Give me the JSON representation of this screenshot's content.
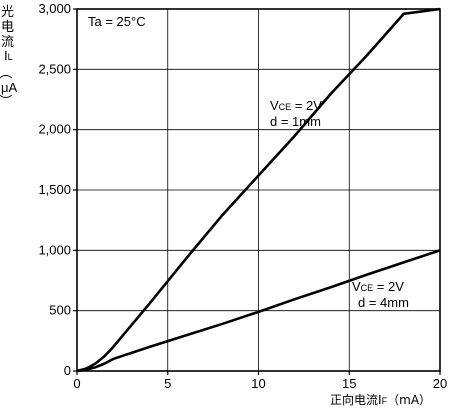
{
  "chart_data": {
    "type": "line",
    "xlabel": {
      "main": "正向电流",
      "symbol": "I",
      "subscript": "F",
      "unit": "（mA）"
    },
    "ylabel": {
      "chars": [
        "光",
        "电",
        "流"
      ],
      "symbol": "I",
      "subscript": "L",
      "paren_open": "（",
      "unit": "μA",
      "paren_close": "）"
    },
    "xlim": [
      0,
      20
    ],
    "ylim": [
      0,
      3000
    ],
    "x_ticks": [
      {
        "value": 0,
        "label": "0"
      },
      {
        "value": 5,
        "label": "5"
      },
      {
        "value": 10,
        "label": "10"
      },
      {
        "value": 15,
        "label": "15"
      },
      {
        "value": 20,
        "label": "20"
      }
    ],
    "y_ticks": [
      {
        "value": 0,
        "label": "0"
      },
      {
        "value": 500,
        "label": "500"
      },
      {
        "value": 1000,
        "label": "1,000"
      },
      {
        "value": 1500,
        "label": "1,500"
      },
      {
        "value": 2000,
        "label": "2,000"
      },
      {
        "value": 2500,
        "label": "2,500"
      },
      {
        "value": 3000,
        "label": "3,000"
      }
    ],
    "grid": true,
    "annotation": "Ta = 25°C",
    "series": [
      {
        "label": {
          "v": "V",
          "sub": "CE",
          "rest": " = 2V",
          "line2": "d = 1mm"
        },
        "x": [
          0,
          0.5,
          1.0,
          1.5,
          2.0,
          3.0,
          4.0,
          6.0,
          8.0,
          10.0,
          12.0,
          14.0,
          16.0,
          18.0,
          20.0
        ],
        "y": [
          0,
          20,
          60,
          120,
          200,
          380,
          560,
          930,
          1290,
          1620,
          1950,
          2300,
          2620,
          2960,
          3000
        ],
        "color": "#000000"
      },
      {
        "label": {
          "v": "V",
          "sub": "CE",
          "rest": " = 2V",
          "line2": "d = 4mm"
        },
        "x": [
          0,
          0.5,
          1.0,
          1.5,
          2.0,
          4.0,
          6.0,
          8.0,
          10.0,
          12.0,
          14.0,
          16.0,
          18.0,
          20.0
        ],
        "y": [
          0,
          10,
          30,
          60,
          100,
          200,
          295,
          390,
          490,
          595,
          695,
          800,
          900,
          1000
        ],
        "color": "#000000"
      }
    ]
  }
}
